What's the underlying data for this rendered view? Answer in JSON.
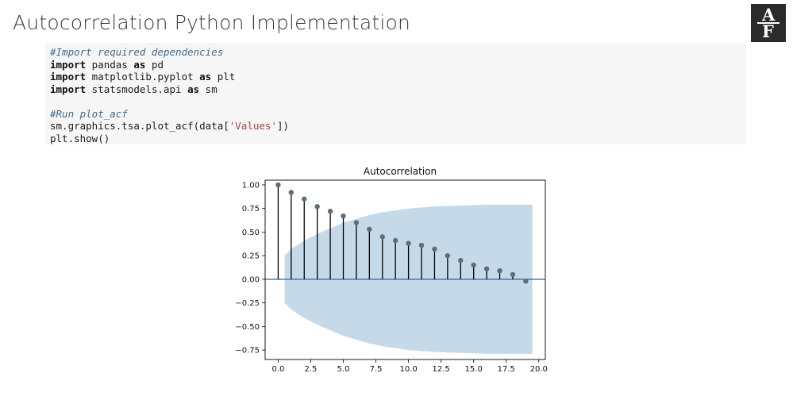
{
  "slide": {
    "title": "Autocorrelation Python Implementation",
    "logo_top": "A",
    "logo_bottom": "F"
  },
  "code": {
    "lines": [
      {
        "type": "comment",
        "text": "#Import required dependencies"
      },
      {
        "type": "import",
        "kw1": "import",
        "mid": " pandas ",
        "kw2": "as",
        "end": " pd"
      },
      {
        "type": "import",
        "kw1": "import",
        "mid": " matplotlib.pyplot ",
        "kw2": "as",
        "end": " plt"
      },
      {
        "type": "import",
        "kw1": "import",
        "mid": " statsmodels.api ",
        "kw2": "as",
        "end": " sm"
      },
      {
        "type": "blank",
        "text": ""
      },
      {
        "type": "comment",
        "text": "#Run plot_acf"
      },
      {
        "type": "call",
        "pre": "sm.graphics.tsa.plot_acf(data[",
        "str": "'Values'",
        "post": "])"
      },
      {
        "type": "plain",
        "text": "plt.show()"
      }
    ]
  },
  "chart_data": {
    "type": "scatter",
    "title": "Autocorrelation",
    "xlabel": "",
    "ylabel": "",
    "xlim": [
      -1,
      20.5
    ],
    "ylim": [
      -0.85,
      1.05
    ],
    "xticks": [
      0.0,
      2.5,
      5.0,
      7.5,
      10.0,
      12.5,
      15.0,
      17.5,
      20.0
    ],
    "xtick_labels": [
      "0.0",
      "2.5",
      "5.0",
      "7.5",
      "10.0",
      "12.5",
      "15.0",
      "17.5",
      "20.0"
    ],
    "yticks": [
      1.0,
      0.75,
      0.5,
      0.25,
      0.0,
      -0.25,
      -0.5,
      -0.75
    ],
    "ytick_labels": [
      "1.00",
      "0.75",
      "0.50",
      "0.25",
      "0.00",
      "−0.25",
      "−0.50",
      "−0.75"
    ],
    "x": [
      0,
      1,
      2,
      3,
      4,
      5,
      6,
      7,
      8,
      9,
      10,
      11,
      12,
      13,
      14,
      15,
      16,
      17,
      18,
      19
    ],
    "values": [
      1.0,
      0.92,
      0.85,
      0.77,
      0.72,
      0.67,
      0.6,
      0.53,
      0.45,
      0.41,
      0.38,
      0.36,
      0.32,
      0.25,
      0.2,
      0.15,
      0.11,
      0.09,
      0.05,
      -0.02
    ],
    "confidence_band": {
      "x": [
        0.5,
        1,
        2,
        3,
        4,
        5,
        6,
        7,
        8,
        9,
        10,
        11,
        12,
        13,
        14,
        15,
        16,
        17,
        18,
        19,
        19.5
      ],
      "upper": [
        0.25,
        0.32,
        0.41,
        0.48,
        0.54,
        0.6,
        0.64,
        0.68,
        0.71,
        0.73,
        0.75,
        0.76,
        0.77,
        0.775,
        0.78,
        0.785,
        0.79,
        0.79,
        0.79,
        0.79,
        0.79
      ]
    },
    "colors": {
      "band": "#c5d9e8",
      "marker": "#5e6e7c",
      "stem": "#000000",
      "zero_line": "#3f6f98"
    },
    "grid": false
  }
}
